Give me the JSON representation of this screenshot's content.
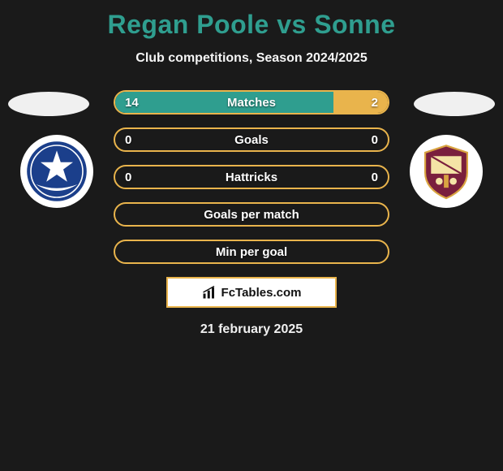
{
  "title_color": "#2f9e8f",
  "title": "Regan Poole vs Sonne",
  "subtitle": "Club competitions, Season 2024/2025",
  "attribution_text": "FcTables.com",
  "date_text": "21 february 2025",
  "left_crest": {
    "bg": "#ffffff",
    "inner_bg": "#1b3f8b",
    "star_color": "#ffffff",
    "moon_color": "#ffffff"
  },
  "right_crest": {
    "bg": "#ffffff"
  },
  "bar_border_color": "#e9b44c",
  "bar_track_color": "#1a1a1a",
  "bars": [
    {
      "label": "Matches",
      "left_value": "14",
      "right_value": "2",
      "left_pct": 80,
      "right_pct": 20,
      "left_color": "#2f9e8f",
      "right_color": "#e9b44c"
    },
    {
      "label": "Goals",
      "left_value": "0",
      "right_value": "0",
      "left_pct": 0,
      "right_pct": 0,
      "left_color": "#2f9e8f",
      "right_color": "#e9b44c"
    },
    {
      "label": "Hattricks",
      "left_value": "0",
      "right_value": "0",
      "left_pct": 0,
      "right_pct": 0,
      "left_color": "#2f9e8f",
      "right_color": "#e9b44c"
    },
    {
      "label": "Goals per match",
      "left_value": "",
      "right_value": "",
      "left_pct": 0,
      "right_pct": 0,
      "left_color": "#2f9e8f",
      "right_color": "#e9b44c"
    },
    {
      "label": "Min per goal",
      "left_value": "",
      "right_value": "",
      "left_pct": 0,
      "right_pct": 0,
      "left_color": "#2f9e8f",
      "right_color": "#e9b44c"
    }
  ]
}
